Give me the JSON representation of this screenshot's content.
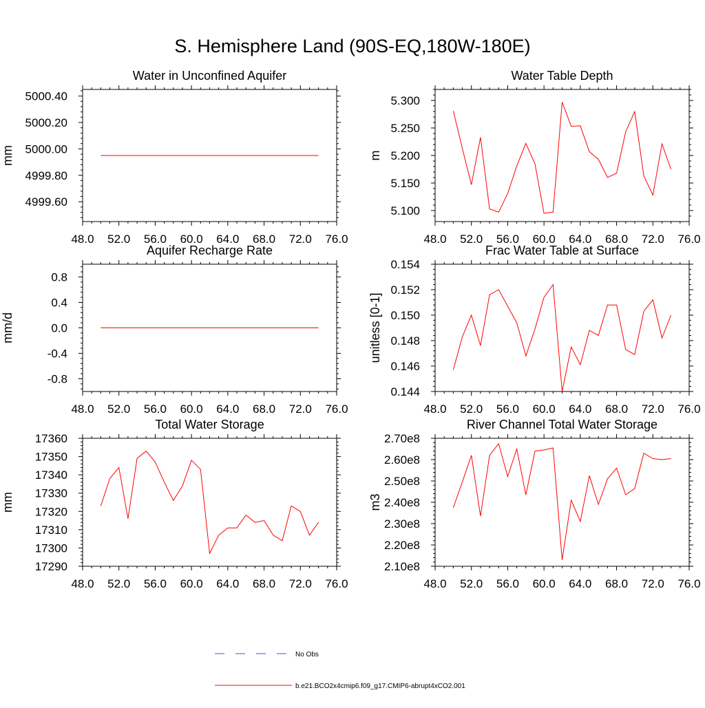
{
  "figure": {
    "title": "S. Hemisphere Land (90S-EQ,180W-180E)",
    "line_color": "#ff0000",
    "obs_color": "#4b4bd6"
  },
  "legend": {
    "items": [
      {
        "label": "No Obs",
        "style": "dashed",
        "color": "#4b4bd6"
      },
      {
        "label": "b.e21.BCO2x4cmip6.f09_g17.CMIP6-abrupt4xCO2.001",
        "style": "solid",
        "color": "#ff0000"
      }
    ]
  },
  "chart_data": [
    {
      "type": "line",
      "title": "Water in Unconfined Aquifer",
      "xlabel": "",
      "ylabel": "mm",
      "xlim": [
        48,
        76
      ],
      "xticks": [
        48,
        52,
        56,
        60,
        64,
        68,
        72,
        76
      ],
      "xtick_labels": [
        "48.0",
        "52.0",
        "56.0",
        "60.0",
        "64.0",
        "68.0",
        "72.0",
        "76.0"
      ],
      "ylim": [
        4999.45,
        5000.45
      ],
      "yticks": [
        4999.6,
        4999.8,
        5000.0,
        5000.2,
        5000.4
      ],
      "ytick_labels": [
        "4999.60",
        "4999.80",
        "5000.00",
        "5000.20",
        "5000.40"
      ],
      "grid": false,
      "series": [
        {
          "x": [
            50,
            51,
            52,
            53,
            54,
            55,
            56,
            57,
            58,
            59,
            60,
            61,
            62,
            63,
            64,
            65,
            66,
            67,
            68,
            69,
            70,
            71,
            72,
            73,
            74
          ],
          "values": [
            4999.95,
            4999.95,
            4999.95,
            4999.95,
            4999.95,
            4999.95,
            4999.95,
            4999.95,
            4999.95,
            4999.95,
            4999.95,
            4999.95,
            4999.95,
            4999.95,
            4999.95,
            4999.95,
            4999.95,
            4999.95,
            4999.95,
            4999.95,
            4999.95,
            4999.95,
            4999.95,
            4999.95,
            4999.95
          ]
        }
      ]
    },
    {
      "type": "line",
      "title": "Water Table Depth",
      "xlabel": "",
      "ylabel": "m",
      "xlim": [
        48,
        76
      ],
      "xticks": [
        48,
        52,
        56,
        60,
        64,
        68,
        72,
        76
      ],
      "xtick_labels": [
        "48.0",
        "52.0",
        "56.0",
        "60.0",
        "64.0",
        "68.0",
        "72.0",
        "76.0"
      ],
      "ylim": [
        5.08,
        5.32
      ],
      "yticks": [
        5.1,
        5.15,
        5.2,
        5.25,
        5.3
      ],
      "ytick_labels": [
        "5.100",
        "5.150",
        "5.200",
        "5.250",
        "5.300"
      ],
      "grid": false,
      "series": [
        {
          "x": [
            50,
            51,
            52,
            53,
            54,
            55,
            56,
            57,
            58,
            59,
            60,
            61,
            62,
            63,
            64,
            65,
            66,
            67,
            68,
            69,
            70,
            71,
            72,
            73,
            74
          ],
          "values": [
            5.281,
            5.213,
            5.147,
            5.233,
            5.103,
            5.097,
            5.131,
            5.181,
            5.222,
            5.185,
            5.095,
            5.097,
            5.297,
            5.253,
            5.254,
            5.207,
            5.193,
            5.16,
            5.168,
            5.243,
            5.28,
            5.163,
            5.128,
            5.221,
            5.175
          ]
        }
      ]
    },
    {
      "type": "line",
      "title": "Aquifer Recharge Rate",
      "xlabel": "",
      "ylabel": "mm/d",
      "xlim": [
        48,
        76
      ],
      "xticks": [
        48,
        52,
        56,
        60,
        64,
        68,
        72,
        76
      ],
      "xtick_labels": [
        "48.0",
        "52.0",
        "56.0",
        "60.0",
        "64.0",
        "68.0",
        "72.0",
        "76.0"
      ],
      "ylim": [
        -1.0,
        1.0
      ],
      "yticks": [
        -0.8,
        -0.4,
        0.0,
        0.4,
        0.8
      ],
      "ytick_labels": [
        "-0.8",
        "-0.4",
        "0.0",
        "0.4",
        "0.8"
      ],
      "grid": false,
      "series": [
        {
          "x": [
            50,
            51,
            52,
            53,
            54,
            55,
            56,
            57,
            58,
            59,
            60,
            61,
            62,
            63,
            64,
            65,
            66,
            67,
            68,
            69,
            70,
            71,
            72,
            73,
            74
          ],
          "values": [
            0,
            0,
            0,
            0,
            0,
            0,
            0,
            0,
            0,
            0,
            0,
            0,
            0,
            0,
            0,
            0,
            0,
            0,
            0,
            0,
            0,
            0,
            0,
            0,
            0
          ]
        }
      ]
    },
    {
      "type": "line",
      "title": "Frac Water Table at Surface",
      "xlabel": "",
      "ylabel": "unitless [0-1]",
      "xlim": [
        48,
        76
      ],
      "xticks": [
        48,
        52,
        56,
        60,
        64,
        68,
        72,
        76
      ],
      "xtick_labels": [
        "48.0",
        "52.0",
        "56.0",
        "60.0",
        "64.0",
        "68.0",
        "72.0",
        "76.0"
      ],
      "ylim": [
        0.144,
        0.154
      ],
      "yticks": [
        0.144,
        0.146,
        0.148,
        0.15,
        0.152,
        0.154
      ],
      "ytick_labels": [
        "0.144",
        "0.146",
        "0.148",
        "0.150",
        "0.152",
        "0.154"
      ],
      "grid": false,
      "series": [
        {
          "x": [
            50,
            51,
            52,
            53,
            54,
            55,
            56,
            57,
            58,
            59,
            60,
            61,
            62,
            63,
            64,
            65,
            66,
            67,
            68,
            69,
            70,
            71,
            72,
            73,
            74
          ],
          "values": [
            0.1457,
            0.1483,
            0.15,
            0.1476,
            0.1516,
            0.152,
            0.1507,
            0.1494,
            0.1468,
            0.1489,
            0.1514,
            0.1524,
            0.144,
            0.1475,
            0.1461,
            0.1488,
            0.1484,
            0.1508,
            0.1508,
            0.1473,
            0.1469,
            0.1503,
            0.1512,
            0.1482,
            0.15
          ]
        }
      ]
    },
    {
      "type": "line",
      "title": "Total Water Storage",
      "xlabel": "",
      "ylabel": "mm",
      "xlim": [
        48,
        76
      ],
      "xticks": [
        48,
        52,
        56,
        60,
        64,
        68,
        72,
        76
      ],
      "xtick_labels": [
        "48.0",
        "52.0",
        "56.0",
        "60.0",
        "64.0",
        "68.0",
        "72.0",
        "76.0"
      ],
      "ylim": [
        17290,
        17360
      ],
      "yticks": [
        17290,
        17300,
        17310,
        17320,
        17330,
        17340,
        17350,
        17360
      ],
      "ytick_labels": [
        "17290",
        "17300",
        "17310",
        "17320",
        "17330",
        "17340",
        "17350",
        "17360"
      ],
      "grid": false,
      "series": [
        {
          "x": [
            50,
            51,
            52,
            53,
            54,
            55,
            56,
            57,
            58,
            59,
            60,
            61,
            62,
            63,
            64,
            65,
            66,
            67,
            68,
            69,
            70,
            71,
            72,
            73,
            74
          ],
          "values": [
            17323,
            17338,
            17344,
            17316,
            17349,
            17353,
            17347,
            17336,
            17326,
            17334,
            17348,
            17343,
            17297,
            17307,
            17311,
            17311,
            17318,
            17314,
            17315,
            17307,
            17304,
            17323,
            17320,
            17307,
            17314
          ]
        }
      ]
    },
    {
      "type": "line",
      "title": "River Channel Total Water Storage",
      "xlabel": "",
      "ylabel": "m3",
      "xlim": [
        48,
        76
      ],
      "xticks": [
        48,
        52,
        56,
        60,
        64,
        68,
        72,
        76
      ],
      "xtick_labels": [
        "48.0",
        "52.0",
        "56.0",
        "60.0",
        "64.0",
        "68.0",
        "72.0",
        "76.0"
      ],
      "ylim": [
        210000000,
        270000000
      ],
      "yticks": [
        210000000,
        220000000,
        230000000,
        240000000,
        250000000,
        260000000,
        270000000
      ],
      "ytick_labels": [
        "2.10e8",
        "2.20e8",
        "2.30e8",
        "2.40e8",
        "2.50e8",
        "2.60e8",
        "2.70e8"
      ],
      "grid": false,
      "series": [
        {
          "x": [
            50,
            51,
            52,
            53,
            54,
            55,
            56,
            57,
            58,
            59,
            60,
            61,
            62,
            63,
            64,
            65,
            66,
            67,
            68,
            69,
            70,
            71,
            72,
            73,
            74
          ],
          "values": [
            237500000,
            249500000,
            262000000,
            233500000,
            262000000,
            267500000,
            252000000,
            265000000,
            243500000,
            264000000,
            264500000,
            265500000,
            213000000,
            241000000,
            231000000,
            252500000,
            239000000,
            251000000,
            256000000,
            243500000,
            246500000,
            263000000,
            260500000,
            260000000,
            260500000
          ]
        }
      ]
    }
  ]
}
